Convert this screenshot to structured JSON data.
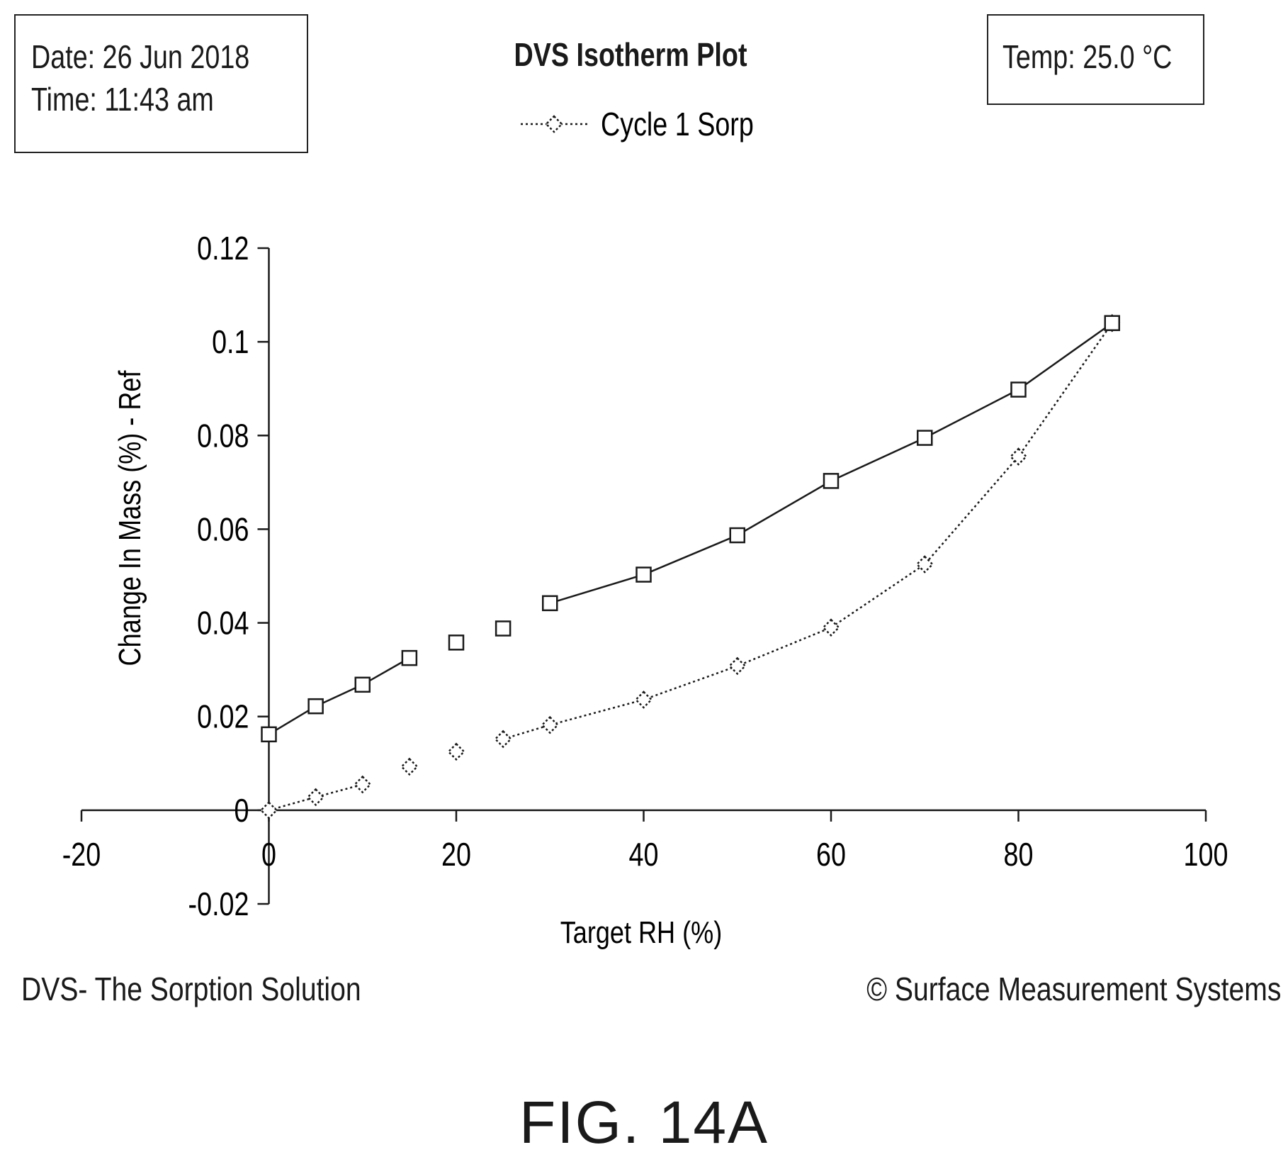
{
  "header": {
    "date_line": "Date: 26 Jun 2018",
    "time_line": "Time: 11:43 am",
    "title": "DVS Isotherm Plot",
    "temp_line": "Temp: 25.0 °C"
  },
  "footer": {
    "left": "DVS- The Sorption Solution",
    "right": "© Surface Measurement Systems"
  },
  "figure_label": "FIG. 14A",
  "chart_data": {
    "type": "line",
    "title": "DVS Isotherm Plot",
    "xlabel": "Target RH (%)",
    "ylabel": "Change In Mass (%) - Ref",
    "xlim": [
      -20,
      100
    ],
    "ylim": [
      -0.02,
      0.12
    ],
    "x_ticks": [
      -20,
      0,
      20,
      40,
      60,
      80,
      100
    ],
    "x_tick_labels": [
      "-20",
      "0",
      "20",
      "40",
      "60",
      "80",
      "100"
    ],
    "y_ticks": [
      -0.02,
      0,
      0.02,
      0.04,
      0.06,
      0.08,
      0.1,
      0.12
    ],
    "y_tick_labels": [
      "-0.02",
      "0",
      "0.02",
      "0.04",
      "0.06",
      "0.08",
      "0.1",
      "0.12"
    ],
    "grid": false,
    "legend_position": "top-center",
    "series": [
      {
        "name": "Cycle 1 Sorp",
        "marker": "diamond",
        "line_style": "dotted",
        "color": "#1a1a1a",
        "points": [
          {
            "x": 0,
            "y": 0.0
          },
          {
            "x": 5,
            "y": 0.0028
          },
          {
            "x": 10,
            "y": 0.0055
          },
          {
            "x": 15,
            "y": 0.0093
          },
          {
            "x": 20,
            "y": 0.0125
          },
          {
            "x": 25,
            "y": 0.0152
          },
          {
            "x": 30,
            "y": 0.0182
          },
          {
            "x": 40,
            "y": 0.0236
          },
          {
            "x": 50,
            "y": 0.0308
          },
          {
            "x": 60,
            "y": 0.039
          },
          {
            "x": 70,
            "y": 0.0525
          },
          {
            "x": 80,
            "y": 0.0755
          },
          {
            "x": 90,
            "y": 0.104
          }
        ],
        "line_segments": [
          [
            0,
            2
          ],
          [
            5,
            12
          ]
        ]
      },
      {
        "marker": "square",
        "line_style": "solid",
        "color": "#1a1a1a",
        "points": [
          {
            "x": 0,
            "y": 0.0162
          },
          {
            "x": 5,
            "y": 0.0222
          },
          {
            "x": 10,
            "y": 0.0268
          },
          {
            "x": 15,
            "y": 0.0325
          },
          {
            "x": 20,
            "y": 0.0358
          },
          {
            "x": 25,
            "y": 0.0388
          },
          {
            "x": 30,
            "y": 0.0442
          },
          {
            "x": 40,
            "y": 0.0503
          },
          {
            "x": 50,
            "y": 0.0587
          },
          {
            "x": 60,
            "y": 0.0703
          },
          {
            "x": 70,
            "y": 0.0795
          },
          {
            "x": 80,
            "y": 0.0898
          },
          {
            "x": 90,
            "y": 0.104
          }
        ],
        "line_segments": [
          [
            0,
            3
          ],
          [
            6,
            12
          ]
        ]
      }
    ]
  }
}
